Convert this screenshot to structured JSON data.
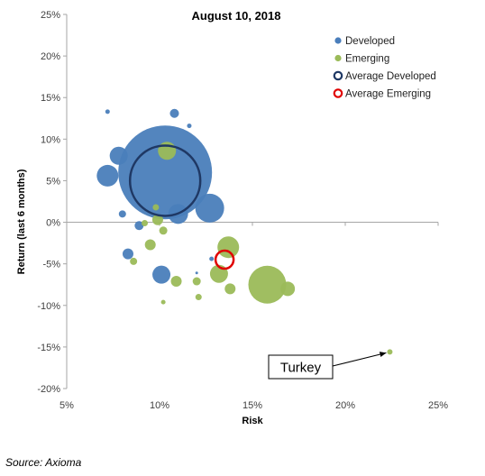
{
  "chart_data": {
    "type": "scatter",
    "title": "August 10, 2018",
    "xlabel": "Risk",
    "ylabel": "Return (last 6 months)",
    "xlim": [
      5,
      25
    ],
    "ylim": [
      -20,
      25
    ],
    "x_ticks": [
      "5%",
      "10%",
      "15%",
      "20%",
      "25%"
    ],
    "y_ticks": [
      "25%",
      "20%",
      "15%",
      "10%",
      "5%",
      "0%",
      "-5%",
      "-10%",
      "-15%",
      "-20%"
    ],
    "legend_position": "top-right",
    "series": [
      {
        "name": "Developed",
        "color": "#4a7ebb",
        "points": [
          {
            "x": 10.3,
            "y": 6.0,
            "r": 52
          },
          {
            "x": 12.7,
            "y": 1.7,
            "r": 16
          },
          {
            "x": 7.2,
            "y": 5.6,
            "r": 12
          },
          {
            "x": 7.8,
            "y": 8.0,
            "r": 10
          },
          {
            "x": 11.0,
            "y": 1.0,
            "r": 11
          },
          {
            "x": 10.1,
            "y": -6.3,
            "r": 10
          },
          {
            "x": 8.3,
            "y": -3.8,
            "r": 6
          },
          {
            "x": 8.9,
            "y": -0.4,
            "r": 5
          },
          {
            "x": 7.2,
            "y": 13.3,
            "r": 2.5
          },
          {
            "x": 10.8,
            "y": 13.1,
            "r": 5
          },
          {
            "x": 11.6,
            "y": 11.6,
            "r": 2.5
          },
          {
            "x": 8.0,
            "y": 1.0,
            "r": 4
          },
          {
            "x": 12.8,
            "y": -4.4,
            "r": 2.5
          },
          {
            "x": 12.0,
            "y": -6.1,
            "r": 1.5
          }
        ]
      },
      {
        "name": "Emerging",
        "color": "#9bbb59",
        "points": [
          {
            "x": 10.4,
            "y": 8.6,
            "r": 10
          },
          {
            "x": 15.8,
            "y": -7.5,
            "r": 21
          },
          {
            "x": 13.7,
            "y": -3.0,
            "r": 12
          },
          {
            "x": 13.2,
            "y": -6.2,
            "r": 10
          },
          {
            "x": 16.9,
            "y": -8.0,
            "r": 8
          },
          {
            "x": 9.9,
            "y": 0.3,
            "r": 6
          },
          {
            "x": 9.5,
            "y": -2.7,
            "r": 6
          },
          {
            "x": 10.9,
            "y": -7.1,
            "r": 6
          },
          {
            "x": 13.8,
            "y": -8.0,
            "r": 6
          },
          {
            "x": 12.0,
            "y": -7.1,
            "r": 4.5
          },
          {
            "x": 10.2,
            "y": -1.0,
            "r": 4.5
          },
          {
            "x": 8.6,
            "y": -4.7,
            "r": 4
          },
          {
            "x": 9.2,
            "y": -0.1,
            "r": 3.5
          },
          {
            "x": 12.1,
            "y": -9.0,
            "r": 3.5
          },
          {
            "x": 9.8,
            "y": 1.8,
            "r": 3.5
          },
          {
            "x": 10.2,
            "y": -9.6,
            "r": 2.5
          },
          {
            "x": 22.4,
            "y": -15.6,
            "r": 3
          }
        ]
      },
      {
        "name": "Average Developed",
        "color": "#1f3864",
        "marker": "ring",
        "points": [
          {
            "x": 10.3,
            "y": 5.0,
            "r": 39
          }
        ]
      },
      {
        "name": "Average Emerging",
        "color": "#e00000",
        "marker": "ring",
        "points": [
          {
            "x": 13.5,
            "y": -4.5,
            "r": 10
          }
        ]
      }
    ],
    "annotations": [
      {
        "text": "Turkey",
        "x": 22.4,
        "y": -15.6
      }
    ]
  },
  "source": "Source: Axioma"
}
